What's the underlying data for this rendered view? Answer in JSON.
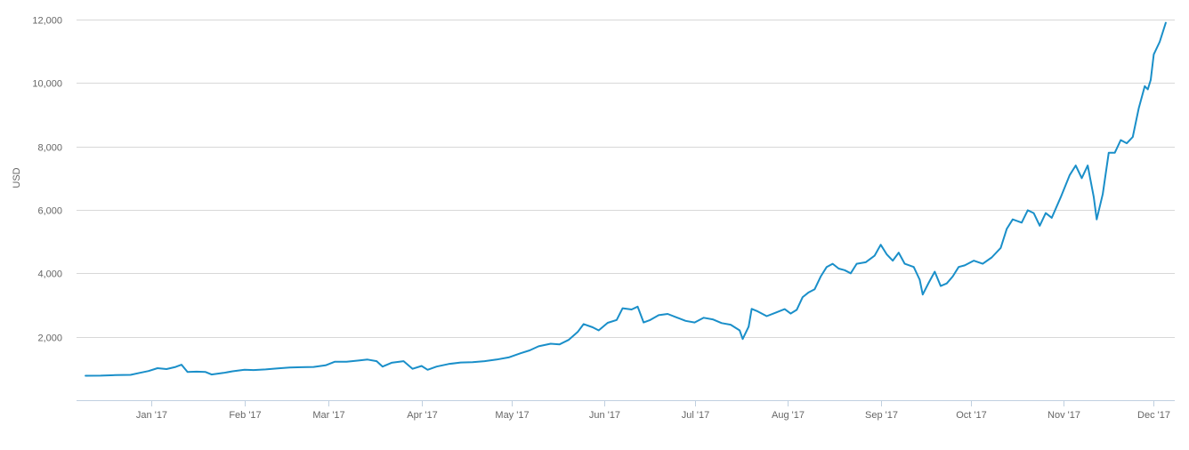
{
  "chart_data": {
    "type": "line",
    "title": "",
    "xlabel": "",
    "ylabel": "USD",
    "ylim": [
      0,
      12000
    ],
    "y_ticks": [
      2000,
      4000,
      6000,
      8000,
      10000,
      12000
    ],
    "y_tick_labels": [
      "2,000",
      "4,000",
      "6,000",
      "8,000",
      "10,000",
      "12,000"
    ],
    "x_ticks": [
      {
        "date": "2017-01-01",
        "label": "Jan '17"
      },
      {
        "date": "2017-02-01",
        "label": "Feb '17"
      },
      {
        "date": "2017-03-01",
        "label": "Mar '17"
      },
      {
        "date": "2017-04-01",
        "label": "Apr '17"
      },
      {
        "date": "2017-05-01",
        "label": "May '17"
      },
      {
        "date": "2017-06-01",
        "label": "Jun '17"
      },
      {
        "date": "2017-07-01",
        "label": "Jul '17"
      },
      {
        "date": "2017-08-01",
        "label": "Aug '17"
      },
      {
        "date": "2017-09-01",
        "label": "Sep '17"
      },
      {
        "date": "2017-10-01",
        "label": "Oct '17"
      },
      {
        "date": "2017-11-01",
        "label": "Nov '17"
      },
      {
        "date": "2017-12-01",
        "label": "Dec '17"
      }
    ],
    "xlim": [
      "2016-12-07",
      "2017-12-08"
    ],
    "grid": true,
    "legend": "none",
    "series": [
      {
        "color": "#1a8fc9",
        "points": [
          [
            "2016-12-10",
            770
          ],
          [
            "2016-12-15",
            775
          ],
          [
            "2016-12-20",
            790
          ],
          [
            "2016-12-25",
            800
          ],
          [
            "2016-12-28",
            860
          ],
          [
            "2016-12-31",
            920
          ],
          [
            "2017-01-03",
            1010
          ],
          [
            "2017-01-06",
            980
          ],
          [
            "2017-01-09",
            1050
          ],
          [
            "2017-01-11",
            1120
          ],
          [
            "2017-01-13",
            890
          ],
          [
            "2017-01-16",
            900
          ],
          [
            "2017-01-19",
            890
          ],
          [
            "2017-01-21",
            810
          ],
          [
            "2017-01-25",
            860
          ],
          [
            "2017-01-28",
            910
          ],
          [
            "2017-02-01",
            960
          ],
          [
            "2017-02-04",
            950
          ],
          [
            "2017-02-08",
            970
          ],
          [
            "2017-02-12",
            1000
          ],
          [
            "2017-02-16",
            1030
          ],
          [
            "2017-02-20",
            1040
          ],
          [
            "2017-02-24",
            1050
          ],
          [
            "2017-02-28",
            1100
          ],
          [
            "2017-03-03",
            1210
          ],
          [
            "2017-03-07",
            1210
          ],
          [
            "2017-03-11",
            1250
          ],
          [
            "2017-03-14",
            1280
          ],
          [
            "2017-03-17",
            1230
          ],
          [
            "2017-03-19",
            1060
          ],
          [
            "2017-03-22",
            1180
          ],
          [
            "2017-03-26",
            1230
          ],
          [
            "2017-03-29",
            990
          ],
          [
            "2017-04-01",
            1080
          ],
          [
            "2017-04-03",
            960
          ],
          [
            "2017-04-06",
            1060
          ],
          [
            "2017-04-10",
            1140
          ],
          [
            "2017-04-14",
            1190
          ],
          [
            "2017-04-18",
            1200
          ],
          [
            "2017-04-22",
            1230
          ],
          [
            "2017-04-26",
            1280
          ],
          [
            "2017-04-30",
            1350
          ],
          [
            "2017-05-04",
            1480
          ],
          [
            "2017-05-07",
            1570
          ],
          [
            "2017-05-10",
            1700
          ],
          [
            "2017-05-14",
            1780
          ],
          [
            "2017-05-17",
            1760
          ],
          [
            "2017-05-20",
            1900
          ],
          [
            "2017-05-23",
            2150
          ],
          [
            "2017-05-25",
            2400
          ],
          [
            "2017-05-28",
            2300
          ],
          [
            "2017-05-30",
            2200
          ],
          [
            "2017-06-02",
            2440
          ],
          [
            "2017-06-05",
            2530
          ],
          [
            "2017-06-07",
            2900
          ],
          [
            "2017-06-10",
            2860
          ],
          [
            "2017-06-12",
            2950
          ],
          [
            "2017-06-14",
            2450
          ],
          [
            "2017-06-16",
            2520
          ],
          [
            "2017-06-19",
            2680
          ],
          [
            "2017-06-22",
            2720
          ],
          [
            "2017-06-25",
            2610
          ],
          [
            "2017-06-28",
            2500
          ],
          [
            "2017-07-01",
            2450
          ],
          [
            "2017-07-04",
            2600
          ],
          [
            "2017-07-07",
            2550
          ],
          [
            "2017-07-10",
            2430
          ],
          [
            "2017-07-13",
            2380
          ],
          [
            "2017-07-16",
            2200
          ],
          [
            "2017-07-17",
            1930
          ],
          [
            "2017-07-19",
            2320
          ],
          [
            "2017-07-20",
            2880
          ],
          [
            "2017-07-22",
            2800
          ],
          [
            "2017-07-25",
            2650
          ],
          [
            "2017-07-28",
            2760
          ],
          [
            "2017-07-31",
            2870
          ],
          [
            "2017-08-02",
            2730
          ],
          [
            "2017-08-04",
            2850
          ],
          [
            "2017-08-06",
            3250
          ],
          [
            "2017-08-08",
            3400
          ],
          [
            "2017-08-10",
            3500
          ],
          [
            "2017-08-12",
            3900
          ],
          [
            "2017-08-14",
            4200
          ],
          [
            "2017-08-16",
            4300
          ],
          [
            "2017-08-18",
            4150
          ],
          [
            "2017-08-20",
            4100
          ],
          [
            "2017-08-22",
            4000
          ],
          [
            "2017-08-24",
            4300
          ],
          [
            "2017-08-27",
            4350
          ],
          [
            "2017-08-30",
            4560
          ],
          [
            "2017-09-01",
            4900
          ],
          [
            "2017-09-03",
            4600
          ],
          [
            "2017-09-05",
            4400
          ],
          [
            "2017-09-07",
            4650
          ],
          [
            "2017-09-09",
            4300
          ],
          [
            "2017-09-12",
            4200
          ],
          [
            "2017-09-14",
            3800
          ],
          [
            "2017-09-15",
            3330
          ],
          [
            "2017-09-17",
            3700
          ],
          [
            "2017-09-19",
            4050
          ],
          [
            "2017-09-21",
            3600
          ],
          [
            "2017-09-23",
            3680
          ],
          [
            "2017-09-25",
            3900
          ],
          [
            "2017-09-27",
            4200
          ],
          [
            "2017-09-29",
            4250
          ],
          [
            "2017-10-02",
            4400
          ],
          [
            "2017-10-05",
            4300
          ],
          [
            "2017-10-08",
            4500
          ],
          [
            "2017-10-11",
            4800
          ],
          [
            "2017-10-13",
            5400
          ],
          [
            "2017-10-15",
            5700
          ],
          [
            "2017-10-18",
            5600
          ],
          [
            "2017-10-20",
            5990
          ],
          [
            "2017-10-22",
            5900
          ],
          [
            "2017-10-24",
            5500
          ],
          [
            "2017-10-26",
            5900
          ],
          [
            "2017-10-28",
            5750
          ],
          [
            "2017-10-31",
            6400
          ],
          [
            "2017-11-03",
            7100
          ],
          [
            "2017-11-05",
            7400
          ],
          [
            "2017-11-07",
            7000
          ],
          [
            "2017-11-09",
            7400
          ],
          [
            "2017-11-11",
            6400
          ],
          [
            "2017-11-12",
            5700
          ],
          [
            "2017-11-14",
            6500
          ],
          [
            "2017-11-16",
            7800
          ],
          [
            "2017-11-18",
            7800
          ],
          [
            "2017-11-20",
            8200
          ],
          [
            "2017-11-22",
            8100
          ],
          [
            "2017-11-24",
            8300
          ],
          [
            "2017-11-26",
            9200
          ],
          [
            "2017-11-28",
            9900
          ],
          [
            "2017-11-29",
            9800
          ],
          [
            "2017-11-30",
            10100
          ],
          [
            "2017-12-01",
            10900
          ],
          [
            "2017-12-03",
            11300
          ],
          [
            "2017-12-05",
            11900
          ]
        ]
      }
    ]
  }
}
